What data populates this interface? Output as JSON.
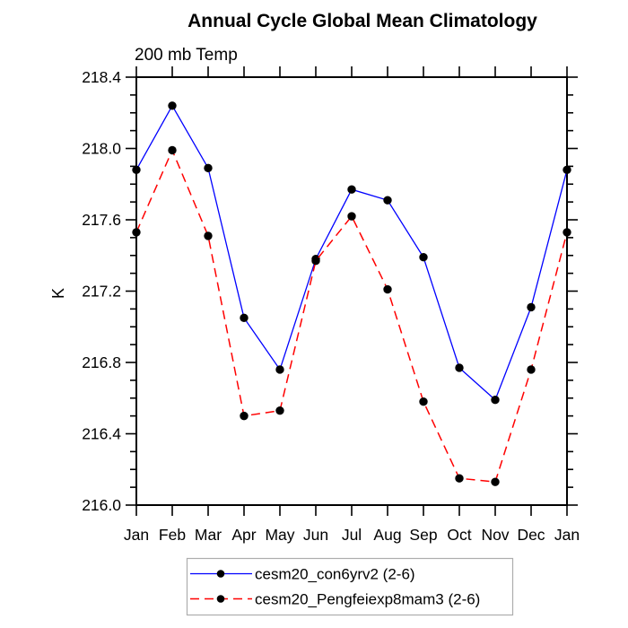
{
  "title": "Annual Cycle Global Mean Climatology",
  "chart_data": {
    "type": "line",
    "title": "Annual Cycle Global Mean Climatology",
    "subtitle": "200 mb Temp",
    "xlabel": "",
    "ylabel": "K",
    "categories": [
      "Jan",
      "Feb",
      "Mar",
      "Apr",
      "May",
      "Jun",
      "Jul",
      "Aug",
      "Sep",
      "Oct",
      "Nov",
      "Dec",
      "Jan"
    ],
    "ylim": [
      216.0,
      218.4
    ],
    "ytick_major_step": 0.4,
    "ytick_minor_step": 0.1,
    "ytick_labels": [
      "218.4",
      "218.0",
      "217.6",
      "217.2",
      "216.8",
      "216.4",
      "216.0"
    ],
    "grid": false,
    "legend_position": "bottom-center",
    "series": [
      {
        "name": "cesm20_con6yrv2 (2-6)",
        "color": "#0000ff",
        "line_style": "solid",
        "marker": "filled-circle",
        "marker_color": "#000000",
        "values": [
          217.88,
          218.24,
          217.89,
          217.05,
          216.76,
          217.38,
          217.77,
          217.71,
          217.39,
          216.77,
          216.59,
          217.11,
          217.88
        ]
      },
      {
        "name": "cesm20_Pengfeiexp8mam3 (2-6)",
        "color": "#ff0000",
        "line_style": "dashed",
        "marker": "filled-circle",
        "marker_color": "#000000",
        "values": [
          217.53,
          217.99,
          217.51,
          216.5,
          216.53,
          217.37,
          217.62,
          217.21,
          216.58,
          216.15,
          216.13,
          216.76,
          217.53
        ]
      }
    ],
    "colors": {
      "axis": "#000000",
      "background": "#ffffff",
      "legend_border": "#adadad",
      "text": "#000000"
    }
  }
}
